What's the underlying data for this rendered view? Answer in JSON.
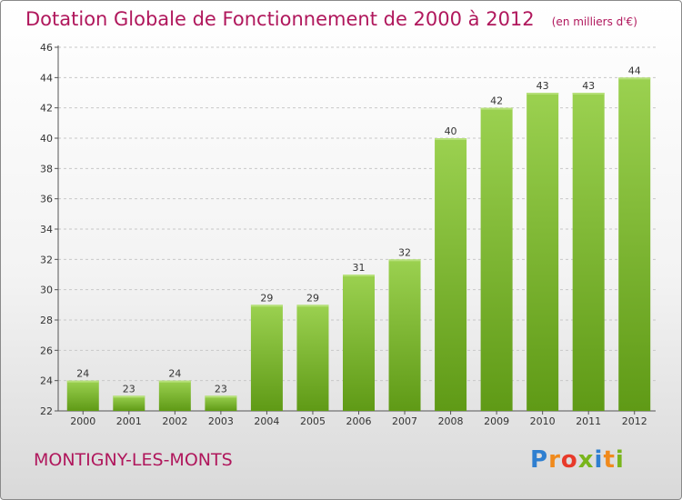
{
  "chart_data": {
    "type": "bar",
    "title": "Dotation Globale de Fonctionnement de 2000 à 2012",
    "unit_note": "(en milliers d'€)",
    "categories": [
      "2000",
      "2001",
      "2002",
      "2003",
      "2004",
      "2005",
      "2006",
      "2007",
      "2008",
      "2009",
      "2010",
      "2011",
      "2012"
    ],
    "values": [
      24,
      23,
      24,
      23,
      29,
      29,
      31,
      32,
      40,
      42,
      43,
      43,
      44
    ],
    "ylim": [
      22,
      46
    ],
    "yticks": [
      22,
      24,
      26,
      28,
      30,
      32,
      34,
      36,
      38,
      40,
      42,
      44,
      46
    ],
    "grid": "horizontal-dashed",
    "legend": "none",
    "colors": {
      "bar_light": "#9bd150",
      "bar_dark": "#5f9a16",
      "grid": "#c8c8c8",
      "title": "#b0175c"
    }
  },
  "footer": {
    "commune": "MONTIGNY-LES-MONTS"
  },
  "logo": {
    "letters": [
      "P",
      "r",
      "o",
      "x",
      "i",
      "t",
      "i"
    ],
    "colors": [
      "#2f7fd0",
      "#f08a1c",
      "#e83a2a",
      "#79b51c",
      "#2f7fd0",
      "#f08a1c",
      "#79b51c"
    ]
  }
}
